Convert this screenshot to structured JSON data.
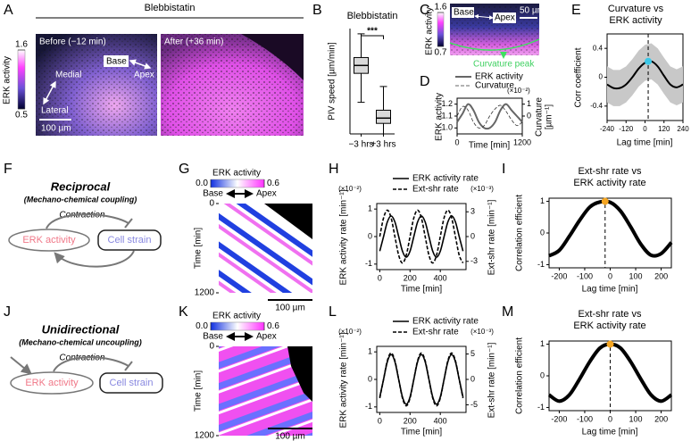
{
  "panel_labels": [
    "A",
    "B",
    "C",
    "D",
    "E",
    "F",
    "G",
    "H",
    "I",
    "J",
    "K",
    "L",
    "M"
  ],
  "a": {
    "title": "Blebbistatin",
    "before": "Before (−12 min)",
    "after": "After (+36 min)",
    "colorbar": {
      "label": "ERK activity",
      "ticks": [
        1.6,
        0.5
      ]
    },
    "medial": "Medial",
    "lateral": "Lateral",
    "base": "Base",
    "apex": "Apex",
    "scale_bar": "100 µm"
  },
  "b": {
    "type": "box",
    "title": "Blebbistatin",
    "ylabel": "PIV speed [µm/min]",
    "categories": [
      "−3 hrs",
      "+3 hrs"
    ],
    "ylim": [
      0,
      0.4
    ],
    "color": "#d9d9d9",
    "boxes": [
      {
        "min": 0.12,
        "q1": 0.23,
        "median": 0.26,
        "q3": 0.29,
        "max": 0.38
      },
      {
        "min": 0.0,
        "q1": 0.04,
        "median": 0.06,
        "q3": 0.09,
        "max": 0.18
      }
    ],
    "significance": "***"
  },
  "c": {
    "colorbar": {
      "label": "ERK activity",
      "ticks": [
        1.6,
        0.7
      ]
    },
    "base": "Base",
    "apex": "Apex",
    "scale_bar": "50 µm",
    "annotation": "Curvature peak"
  },
  "d": {
    "type": "line",
    "xlabel": "Time [min]",
    "ylabel": "ERK activity",
    "y2label": [
      "Curvature",
      "[µm⁻¹]"
    ],
    "y2scale": "(×10⁻²)",
    "x": [
      0,
      100,
      200,
      300,
      400,
      500,
      600,
      700,
      800,
      900,
      1000,
      1100,
      1200
    ],
    "xlim": [
      0,
      1200
    ],
    "xticks": [
      0,
      1200
    ],
    "ylim": [
      0.95,
      1.25
    ],
    "yticks": [
      1.2,
      1.1,
      {
        "value": 1,
        "label": "1.0"
      }
    ],
    "y2lim": [
      -1.5,
      1.5
    ],
    "y2ticks": [
      1,
      0
    ],
    "series": [
      {
        "name": "ERK activity",
        "color": "#666666",
        "linewidth": 2,
        "values": [
          1.05,
          1.12,
          1.2,
          1.15,
          1.05,
          1.0,
          1.0,
          1.05,
          1.15,
          1.2,
          1.15,
          1.1,
          1.05
        ]
      },
      {
        "name": "Curvature",
        "color": "#333333",
        "linewidth": 0.8,
        "dash": true,
        "axis": "y2",
        "values": [
          0,
          0.8,
          0.5,
          -0.5,
          -1,
          -0.8,
          0,
          0.6,
          0.9,
          0.4,
          -0.3,
          -0.8,
          -0.5
        ]
      }
    ]
  },
  "e": {
    "type": "line",
    "title": [
      "Curvature vs",
      "ERK activity"
    ],
    "xlabel": "Lag time [min]",
    "ylabel": "Corr coefficient",
    "x": [
      -240,
      -200,
      -160,
      -120,
      -80,
      -40,
      0,
      40,
      80,
      120,
      160,
      200,
      240
    ],
    "xlim": [
      -240,
      240
    ],
    "xticks": [
      -240,
      -120,
      0,
      120,
      240
    ],
    "ylim": [
      -0.6,
      0.6
    ],
    "yticks": [
      0.4,
      0,
      -0.4
    ],
    "series": [
      {
        "color": "#000000",
        "linewidth": 2,
        "band_color": "#c8c8c8",
        "values": [
          -0.1,
          -0.15,
          -0.15,
          -0.1,
          0,
          0.12,
          0.2,
          0.22,
          0.15,
          0.02,
          -0.1,
          -0.14,
          -0.1
        ],
        "error": [
          0.25,
          0.25,
          0.25,
          0.25,
          0.25,
          0.25,
          0.25,
          0.25,
          0.25,
          0.25,
          0.25,
          0.25,
          0.25
        ]
      }
    ],
    "peak": {
      "x": 20,
      "y": 0.22,
      "color": "#3cc8e8"
    }
  },
  "f": {
    "title": "Reciprocal",
    "subtitle": "(Mechano-chemical coupling)",
    "edge": "Contraction",
    "nodes": [
      "ERK activity",
      "Cell strain"
    ]
  },
  "g": {
    "colorbar": {
      "label": "ERK activity",
      "ticks": [
        {
          "value": 0,
          "label": "0.0"
        },
        0.6
      ]
    },
    "base": "Base",
    "apex": "Apex",
    "ylabel": "Time [min]",
    "yticks": [
      0,
      1200
    ],
    "scale_bar": "100 µm"
  },
  "h": {
    "type": "line",
    "xlabel": "Time [min]",
    "ylabel": "ERK activity rate [min⁻¹]",
    "y2label": "Ext-shr rate [min⁻¹]",
    "yscale": "(×10⁻²)",
    "y2scale": "(×10⁻³)",
    "x": [
      0,
      25,
      50,
      75,
      100,
      125,
      150,
      175,
      200,
      225,
      250,
      275,
      300,
      325,
      350,
      375,
      400,
      425,
      450,
      475,
      500,
      525,
      550
    ],
    "xlim": [
      -20,
      570
    ],
    "xticks": [
      0,
      200,
      400
    ],
    "ylim": [
      -1.2,
      1.2
    ],
    "yticks": [
      1,
      0,
      -1
    ],
    "y2lim": [
      -4,
      4
    ],
    "y2ticks": [
      3,
      0,
      -3
    ],
    "series": [
      {
        "name": "ERK activity rate",
        "color": "#000000",
        "linewidth": 1.6,
        "values": [
          -0.53,
          0,
          0.53,
          0.75,
          0.53,
          0,
          -0.53,
          -0.75,
          -0.53,
          0,
          0.53,
          0.75,
          0.53,
          0,
          -0.53,
          -0.75,
          -0.53,
          0,
          0.53,
          0.75,
          0.53,
          0,
          -0.53
        ]
      },
      {
        "name": "Ext-shr rate",
        "color": "#000000",
        "linewidth": 1.6,
        "dash": true,
        "axis": "y2",
        "values": [
          0,
          2.26,
          3.2,
          2.26,
          0,
          -2.26,
          -3.2,
          -2.26,
          0,
          2.26,
          3.2,
          2.26,
          0,
          -2.26,
          -3.2,
          -2.26,
          0,
          2.26,
          3.2,
          2.26,
          0,
          -2.26,
          -3.2
        ]
      }
    ]
  },
  "i": {
    "type": "line",
    "title": [
      "Ext-shr rate vs",
      "ERK activity rate"
    ],
    "xlabel": "Lag time [min]",
    "ylabel": "Correlation efficient",
    "x": [
      -240,
      -200,
      -160,
      -120,
      -80,
      -40,
      0,
      40,
      80,
      120,
      160,
      200,
      240
    ],
    "xlim": [
      -240,
      240
    ],
    "xticks": [
      -200,
      -100,
      0,
      100,
      200
    ],
    "ylim": [
      -1.1,
      1.1
    ],
    "yticks": [
      1,
      0,
      -1
    ],
    "series": [
      {
        "color": "#000000",
        "linewidth": 4,
        "values": [
          -0.72,
          -0.55,
          -0.1,
          0.4,
          0.82,
          0.98,
          0.97,
          0.7,
          0.2,
          -0.35,
          -0.7,
          -0.65,
          -0.3
        ]
      }
    ],
    "peak": {
      "x": -20,
      "y": 1,
      "color": "#f5a623"
    }
  },
  "j": {
    "title": "Unidirectional",
    "subtitle": "(Mechano-chemical uncoupling)",
    "edge": "Contraction",
    "nodes": [
      "ERK activity",
      "Cell strain"
    ]
  },
  "k": {
    "colorbar": {
      "label": "ERK activity",
      "ticks": [
        {
          "value": 0,
          "label": "0.0"
        },
        0.6
      ]
    },
    "base": "Base",
    "apex": "Apex",
    "ylabel": "Time [min]",
    "yticks": [
      0,
      1200
    ],
    "scale_bar": "100 µm"
  },
  "l": {
    "type": "line",
    "xlabel": "Time [min]",
    "ylabel": "ERK activity rate [min⁻¹]",
    "y2label": "Ext-shr rate [min⁻¹]",
    "yscale": "(×10⁻²)",
    "y2scale": "(×10⁻³)",
    "x": [
      0,
      25,
      50,
      75,
      100,
      125,
      150,
      175,
      200,
      225,
      250,
      275,
      300,
      325,
      350,
      375,
      400,
      425,
      450,
      475,
      500,
      525,
      550
    ],
    "xlim": [
      -20,
      570
    ],
    "xticks": [
      0,
      200,
      400
    ],
    "ylim": [
      -1.2,
      1.2
    ],
    "yticks": [
      1,
      0,
      -1
    ],
    "y2lim": [
      -6.5,
      6.5
    ],
    "y2ticks": [
      5,
      0,
      -5
    ],
    "series": [
      {
        "name": "ERK activity rate",
        "color": "#000000",
        "linewidth": 1.6,
        "values": [
          -0.64,
          0,
          0.64,
          0.9,
          0.64,
          0,
          -0.64,
          -0.9,
          -0.64,
          0,
          0.64,
          0.9,
          0.64,
          0,
          -0.64,
          -0.9,
          -0.64,
          0,
          0.64,
          0.9,
          0.64,
          0,
          -0.64
        ]
      },
      {
        "name": "Ext-shr rate",
        "color": "#000000",
        "linewidth": 1.6,
        "dash": true,
        "axis": "y2",
        "values": [
          -3.68,
          0,
          3.68,
          5.2,
          3.68,
          0,
          -3.68,
          -5.2,
          -3.68,
          0,
          3.68,
          5.2,
          3.68,
          0,
          -3.68,
          -5.2,
          -3.68,
          0,
          3.68,
          5.2,
          3.68,
          0,
          -3.68
        ]
      }
    ]
  },
  "m": {
    "type": "line",
    "title": [
      "Ext-shr rate vs",
      "ERK activity rate"
    ],
    "xlabel": "Lag time [min]",
    "ylabel": "Correlation efficient",
    "x": [
      -240,
      -200,
      -160,
      -120,
      -80,
      -40,
      0,
      40,
      80,
      120,
      160,
      200,
      240
    ],
    "xlim": [
      -240,
      240
    ],
    "xticks": [
      -200,
      -100,
      0,
      100,
      200
    ],
    "ylim": [
      -1.1,
      1.1
    ],
    "yticks": [
      1,
      0,
      -1
    ],
    "series": [
      {
        "color": "#000000",
        "linewidth": 4,
        "values": [
          -0.6,
          -0.8,
          -0.6,
          -0.1,
          0.45,
          0.88,
          1,
          0.88,
          0.45,
          -0.1,
          -0.6,
          -0.8,
          -0.6
        ]
      }
    ],
    "peak": {
      "x": 0,
      "y": 1,
      "color": "#f5a623"
    }
  }
}
